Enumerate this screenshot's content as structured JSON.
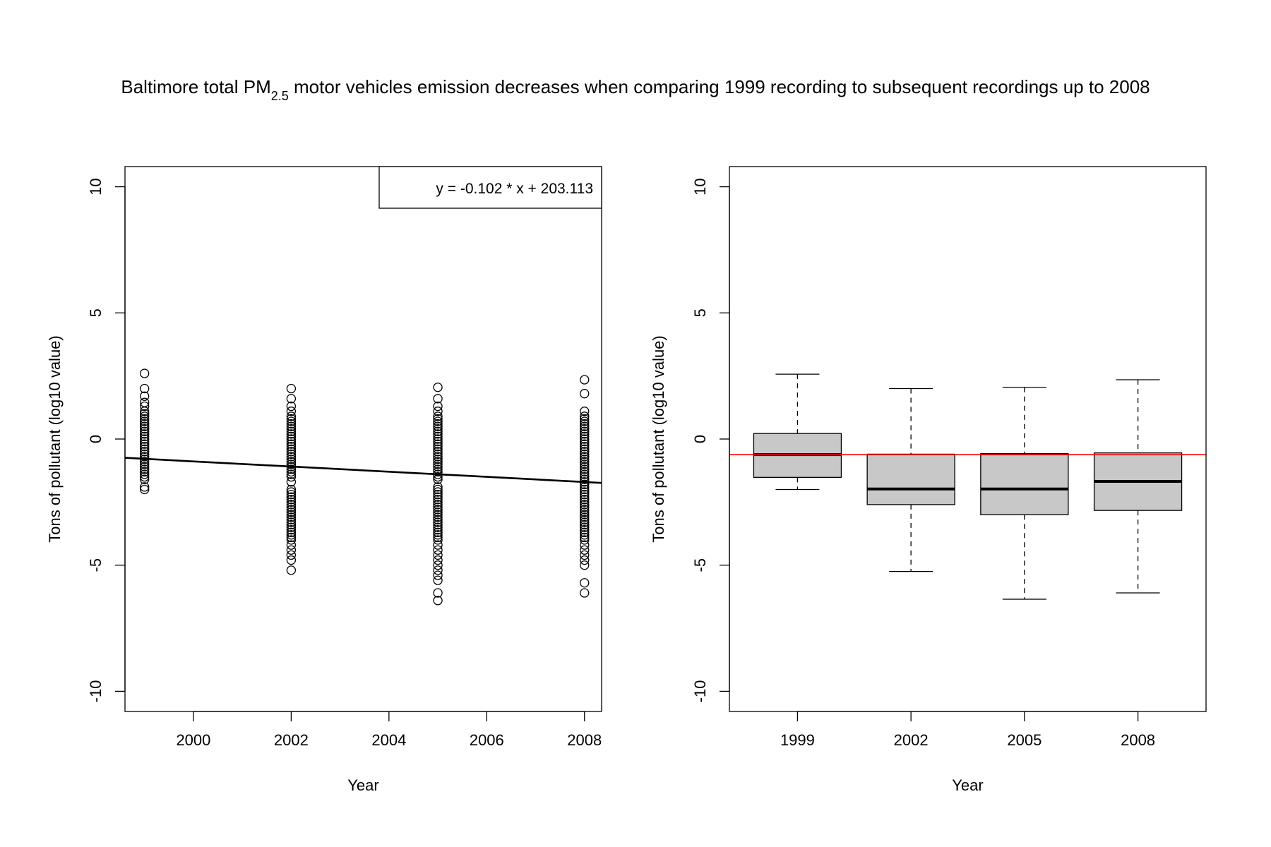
{
  "figure": {
    "title_prefix": "Baltimore total PM",
    "title_subscript": "2.5",
    "title_suffix": " motor vehicles emission decreases when comparing 1999 recording to subsequent recordings up to 2008"
  },
  "chart_data": [
    {
      "type": "scatter",
      "xlabel": "Year",
      "ylabel": "Tons of pollutant (log10 value)",
      "xlim": [
        1998.6,
        2008.35
      ],
      "ylim": [
        -10.8,
        10.8
      ],
      "xticks": [
        2000,
        2002,
        2004,
        2006,
        2008
      ],
      "xtick_labels": [
        "2000",
        "2002",
        "2004",
        "2006",
        "2008"
      ],
      "yticks": [
        -10,
        -5,
        0,
        5,
        10
      ],
      "ytick_labels": [
        "-10",
        "-5",
        "0",
        "5",
        "10"
      ],
      "grid": false,
      "legend": {
        "position": "top-right",
        "text": "y = -0.102 * x + 203.113"
      },
      "regression": {
        "slope": -0.102,
        "intercept": 203.113
      },
      "points_by_year": [
        {
          "x": 1999,
          "y": [
            2.6,
            2.0,
            1.7,
            1.45,
            1.3,
            1.1,
            1.0,
            0.9,
            0.8,
            0.7,
            0.6,
            0.5,
            0.4,
            0.3,
            0.2,
            0.1,
            0.0,
            -0.1,
            -0.2,
            -0.3,
            -0.4,
            -0.5,
            -0.6,
            -0.7,
            -0.8,
            -0.9,
            -1.0,
            -1.1,
            -1.2,
            -1.3,
            -1.4,
            -1.5,
            -1.6,
            -1.9,
            -2.0
          ]
        },
        {
          "x": 2002,
          "y": [
            2.0,
            1.6,
            1.3,
            1.1,
            0.9,
            0.8,
            0.7,
            0.6,
            0.5,
            0.4,
            0.3,
            0.2,
            0.1,
            0.0,
            -0.1,
            -0.2,
            -0.3,
            -0.4,
            -0.5,
            -0.6,
            -0.7,
            -0.8,
            -0.9,
            -1.0,
            -1.1,
            -1.2,
            -1.3,
            -1.4,
            -1.5,
            -1.7,
            -2.0,
            -2.1,
            -2.2,
            -2.3,
            -2.4,
            -2.5,
            -2.6,
            -2.7,
            -2.8,
            -2.9,
            -3.0,
            -3.1,
            -3.2,
            -3.3,
            -3.4,
            -3.5,
            -3.6,
            -3.7,
            -3.8,
            -3.9,
            -4.0,
            -4.2,
            -4.4,
            -4.6,
            -4.8,
            -5.2
          ]
        },
        {
          "x": 2005,
          "y": [
            2.05,
            1.6,
            1.3,
            1.1,
            0.9,
            0.8,
            0.7,
            0.6,
            0.5,
            0.4,
            0.3,
            0.2,
            0.1,
            0.0,
            -0.1,
            -0.2,
            -0.3,
            -0.4,
            -0.5,
            -0.6,
            -0.7,
            -0.8,
            -0.9,
            -1.0,
            -1.1,
            -1.2,
            -1.3,
            -1.4,
            -1.5,
            -1.6,
            -1.9,
            -2.0,
            -2.1,
            -2.2,
            -2.3,
            -2.4,
            -2.5,
            -2.6,
            -2.7,
            -2.8,
            -2.9,
            -3.0,
            -3.1,
            -3.2,
            -3.3,
            -3.4,
            -3.5,
            -3.6,
            -3.7,
            -3.8,
            -3.9,
            -4.0,
            -4.2,
            -4.4,
            -4.6,
            -4.8,
            -5.0,
            -5.2,
            -5.4,
            -5.6,
            -6.1,
            -6.4
          ]
        },
        {
          "x": 2008,
          "y": [
            2.35,
            1.8,
            1.1,
            0.9,
            0.8,
            0.7,
            0.6,
            0.5,
            0.4,
            0.3,
            0.2,
            0.1,
            0.0,
            -0.1,
            -0.2,
            -0.3,
            -0.4,
            -0.5,
            -0.6,
            -0.7,
            -0.8,
            -0.9,
            -1.0,
            -1.1,
            -1.2,
            -1.3,
            -1.4,
            -1.5,
            -1.6,
            -1.7,
            -1.8,
            -1.9,
            -2.0,
            -2.1,
            -2.2,
            -2.3,
            -2.4,
            -2.5,
            -2.6,
            -2.7,
            -2.8,
            -2.9,
            -3.0,
            -3.1,
            -3.2,
            -3.3,
            -3.4,
            -3.5,
            -3.6,
            -3.7,
            -3.8,
            -3.9,
            -4.0,
            -4.2,
            -4.4,
            -4.6,
            -4.8,
            -5.0,
            -5.7,
            -6.1
          ]
        }
      ]
    },
    {
      "type": "box",
      "xlabel": "Year",
      "ylabel": "Tons of pollutant (log10 value)",
      "categories": [
        "1999",
        "2002",
        "2005",
        "2008"
      ],
      "ylim": [
        -10.8,
        10.8
      ],
      "yticks": [
        -10,
        -5,
        0,
        5,
        10
      ],
      "ytick_labels": [
        "-10",
        "-5",
        "0",
        "5",
        "10"
      ],
      "grid": false,
      "box_fill": "#c8c8c8",
      "reference_line": {
        "y": -0.62,
        "color": "#ff0000"
      },
      "boxes": [
        {
          "category": "1999",
          "whisker_low": -2.0,
          "q1": -1.52,
          "median": -0.62,
          "q3": 0.22,
          "whisker_high": 2.57
        },
        {
          "category": "2002",
          "whisker_low": -5.25,
          "q1": -2.6,
          "median": -1.98,
          "q3": -0.6,
          "whisker_high": 2.0
        },
        {
          "category": "2005",
          "whisker_low": -6.35,
          "q1": -3.0,
          "median": -1.98,
          "q3": -0.58,
          "whisker_high": 2.05
        },
        {
          "category": "2008",
          "whisker_low": -6.1,
          "q1": -2.83,
          "median": -1.68,
          "q3": -0.55,
          "whisker_high": 2.35
        }
      ]
    }
  ]
}
